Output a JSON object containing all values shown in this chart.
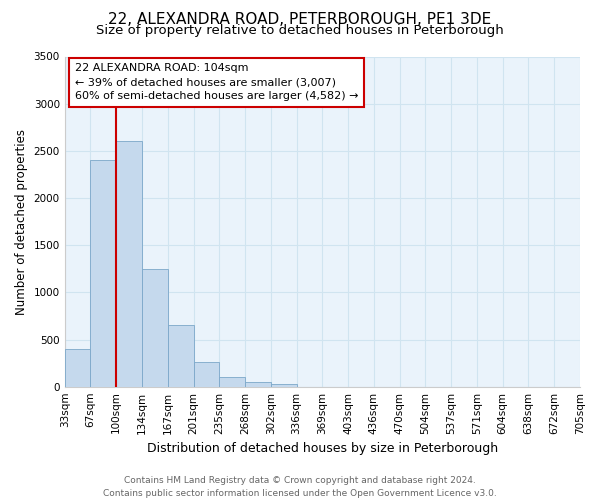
{
  "title": "22, ALEXANDRA ROAD, PETERBOROUGH, PE1 3DE",
  "subtitle": "Size of property relative to detached houses in Peterborough",
  "bar_values": [
    400,
    2400,
    2600,
    1250,
    650,
    260,
    100,
    50,
    30,
    0,
    0,
    0,
    0,
    0,
    0,
    0,
    0,
    0,
    0,
    0
  ],
  "x_labels": [
    "33sqm",
    "67sqm",
    "100sqm",
    "134sqm",
    "167sqm",
    "201sqm",
    "235sqm",
    "268sqm",
    "302sqm",
    "336sqm",
    "369sqm",
    "403sqm",
    "436sqm",
    "470sqm",
    "504sqm",
    "537sqm",
    "571sqm",
    "604sqm",
    "638sqm",
    "672sqm",
    "705sqm"
  ],
  "bar_color": "#c5d9ed",
  "bar_edge_color": "#7ba7c9",
  "property_line_x": 2,
  "property_line_color": "#cc0000",
  "ylabel": "Number of detached properties",
  "xlabel": "Distribution of detached houses by size in Peterborough",
  "ylim": [
    0,
    3500
  ],
  "yticks": [
    0,
    500,
    1000,
    1500,
    2000,
    2500,
    3000,
    3500
  ],
  "annotation_title": "22 ALEXANDRA ROAD: 104sqm",
  "annotation_line1": "← 39% of detached houses are smaller (3,007)",
  "annotation_line2": "60% of semi-detached houses are larger (4,582) →",
  "annotation_box_color": "#ffffff",
  "annotation_box_edge": "#cc0000",
  "footer_line1": "Contains HM Land Registry data © Crown copyright and database right 2024.",
  "footer_line2": "Contains public sector information licensed under the Open Government Licence v3.0.",
  "title_fontsize": 11,
  "subtitle_fontsize": 9.5,
  "ylabel_fontsize": 8.5,
  "xlabel_fontsize": 9,
  "tick_fontsize": 7.5,
  "annotation_fontsize": 8,
  "footer_fontsize": 6.5,
  "grid_color": "#d0e4f0",
  "background_color": "#eaf3fb"
}
